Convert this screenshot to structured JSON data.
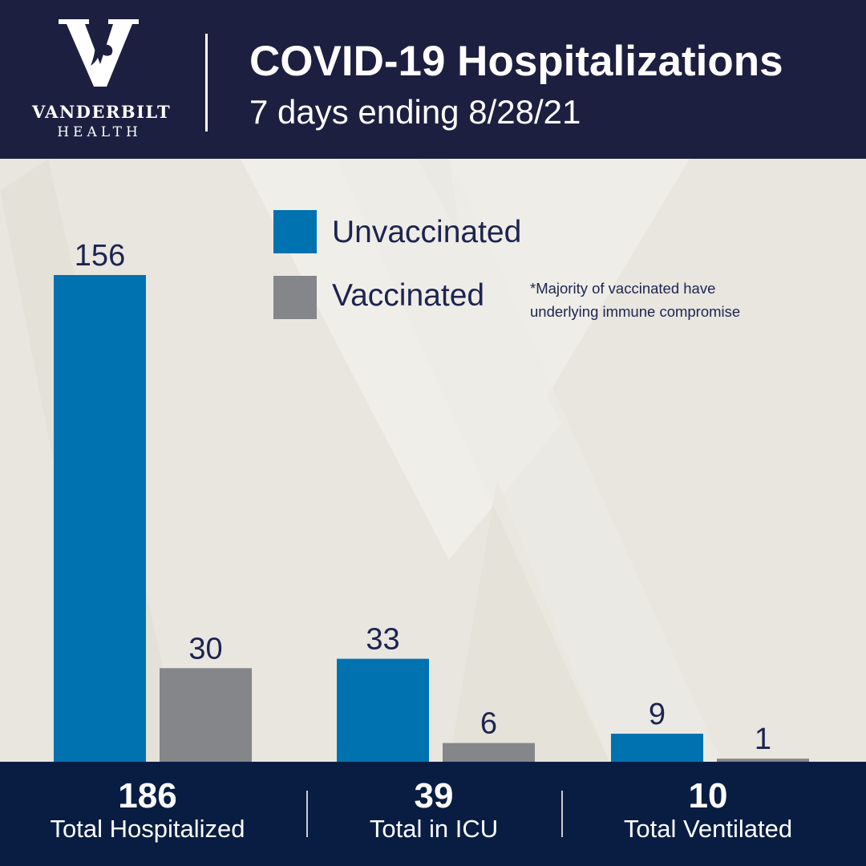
{
  "header": {
    "logo_word": "VANDERBILT",
    "logo_sub": "HEALTH",
    "title": "COVID-19 Hospitalizations",
    "subtitle": "7 days ending 8/28/21"
  },
  "legend": {
    "items": [
      {
        "label": "Unvaccinated",
        "color": "#0072b0"
      },
      {
        "label": "Vaccinated",
        "color": "#858689"
      }
    ]
  },
  "footnote": {
    "line1": "*Majority of vaccinated have",
    "line2": "underlying immune compromise"
  },
  "chart_data": {
    "type": "bar",
    "title": "COVID-19 Hospitalizations",
    "subtitle": "7 days ending 8/28/21",
    "categories": [
      "Total Hospitalized",
      "Total in ICU",
      "Total Ventilated"
    ],
    "series": [
      {
        "name": "Unvaccinated",
        "values": [
          156,
          33,
          9
        ],
        "color": "#0072b0"
      },
      {
        "name": "Vaccinated",
        "values": [
          30,
          6,
          1
        ],
        "color": "#858689"
      }
    ],
    "totals": [
      "186",
      "39",
      "10"
    ],
    "legend": "top-center",
    "grid": false,
    "ylim": [
      0,
      156
    ]
  },
  "footer": {
    "totals": [
      {
        "value": "186",
        "label": "Total Hospitalized"
      },
      {
        "value": "39",
        "label": "Total in ICU"
      },
      {
        "value": "10",
        "label": "Total Ventilated"
      }
    ]
  },
  "colors": {
    "header_bg": "#1d1f40",
    "footer_bg": "#091d43",
    "panel_bg": "#e9e6e0",
    "text_dark": "#1c2450"
  }
}
